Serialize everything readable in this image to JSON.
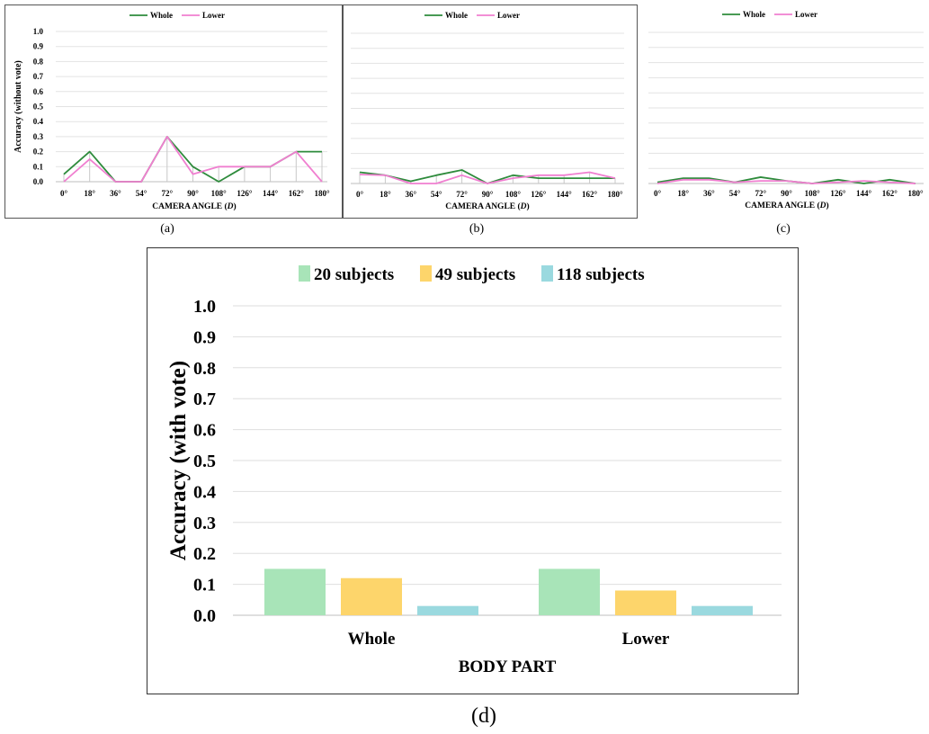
{
  "chart_data": [
    {
      "id": "a",
      "type": "line",
      "caption": "(a)",
      "categories": [
        "0°",
        "18°",
        "36°",
        "54°",
        "72°",
        "90°",
        "108°",
        "126°",
        "144°",
        "162°",
        "180°"
      ],
      "series": [
        {
          "name": "Whole",
          "color": "#2e8b3c",
          "values": [
            0.05,
            0.2,
            0,
            0,
            0.3,
            0.1,
            0,
            0.1,
            0.1,
            0.2,
            0.2
          ]
        },
        {
          "name": "Lower",
          "color": "#f07fd0",
          "values": [
            0,
            0.15,
            0,
            0,
            0.3,
            0.05,
            0.1,
            0.1,
            0.1,
            0.2,
            0
          ]
        }
      ],
      "ylabel": "Accuracy (without vote)",
      "xlabel_main": "CAMERA ANGLE (",
      "xlabel_var": "D",
      "xlabel_end": ")",
      "yticks": [
        "0.0",
        "0.1",
        "0.2",
        "0.3",
        "0.4",
        "0.5",
        "0.6",
        "0.7",
        "0.8",
        "0.9",
        "1.0"
      ],
      "ylim": [
        0,
        1
      ],
      "grid": true,
      "legend": "top-center"
    },
    {
      "id": "b",
      "type": "line",
      "caption": "(b)",
      "categories": [
        "0°",
        "18°",
        "36°",
        "54°",
        "72°",
        "90°",
        "108°",
        "126°",
        "144°",
        "162°",
        "180°"
      ],
      "series": [
        {
          "name": "Whole",
          "color": "#2e8b3c",
          "values": [
            0.075,
            0.055,
            0.015,
            0.055,
            0.09,
            0,
            0.055,
            0.035,
            0.035,
            0.035,
            0.035
          ]
        },
        {
          "name": "Lower",
          "color": "#f07fd0",
          "values": [
            0.06,
            0.055,
            0,
            0,
            0.055,
            0,
            0.035,
            0.055,
            0.055,
            0.075,
            0.035
          ]
        }
      ],
      "xlabel_main": "CAMERA ANGLE (",
      "xlabel_var": "D",
      "xlabel_end": ")",
      "ylim": [
        0,
        1
      ],
      "grid": true,
      "legend": "top-center"
    },
    {
      "id": "c",
      "type": "line",
      "caption": "(c)",
      "categories": [
        "0°",
        "18°",
        "36°",
        "54°",
        "72°",
        "90°",
        "108°",
        "126°",
        "144°",
        "162°",
        "180°"
      ],
      "series": [
        {
          "name": "Whole",
          "color": "#2e8b3c",
          "values": [
            0.008,
            0.035,
            0.035,
            0.008,
            0.042,
            0.017,
            0,
            0.025,
            0,
            0.025,
            0
          ]
        },
        {
          "name": "Lower",
          "color": "#f07fd0",
          "values": [
            0,
            0.025,
            0.025,
            0.008,
            0.017,
            0.017,
            0,
            0.008,
            0.017,
            0.008,
            0
          ]
        }
      ],
      "xlabel_main": "CAMERA ANGLE (",
      "xlabel_var": "D",
      "xlabel_end": ")",
      "ylim": [
        0,
        1
      ],
      "grid": true,
      "legend": "top-center"
    },
    {
      "id": "d",
      "type": "bar",
      "caption": "(d)",
      "categories": [
        "Whole",
        "Lower"
      ],
      "series": [
        {
          "name": "20 subjects",
          "color": "#a8e4b8",
          "values": [
            0.15,
            0.15
          ]
        },
        {
          "name": "49 subjects",
          "color": "#fdd56b",
          "values": [
            0.12,
            0.08
          ]
        },
        {
          "name": "118 subjects",
          "color": "#9ad9df",
          "values": [
            0.03,
            0.03
          ]
        }
      ],
      "ylabel": "Accuracy (with vote)",
      "xlabel": "BODY PART",
      "yticks": [
        "0.0",
        "0.1",
        "0.2",
        "0.3",
        "0.4",
        "0.5",
        "0.6",
        "0.7",
        "0.8",
        "0.9",
        "1.0"
      ],
      "ylim": [
        0,
        1
      ],
      "grid": true,
      "legend": "top-center"
    }
  ]
}
